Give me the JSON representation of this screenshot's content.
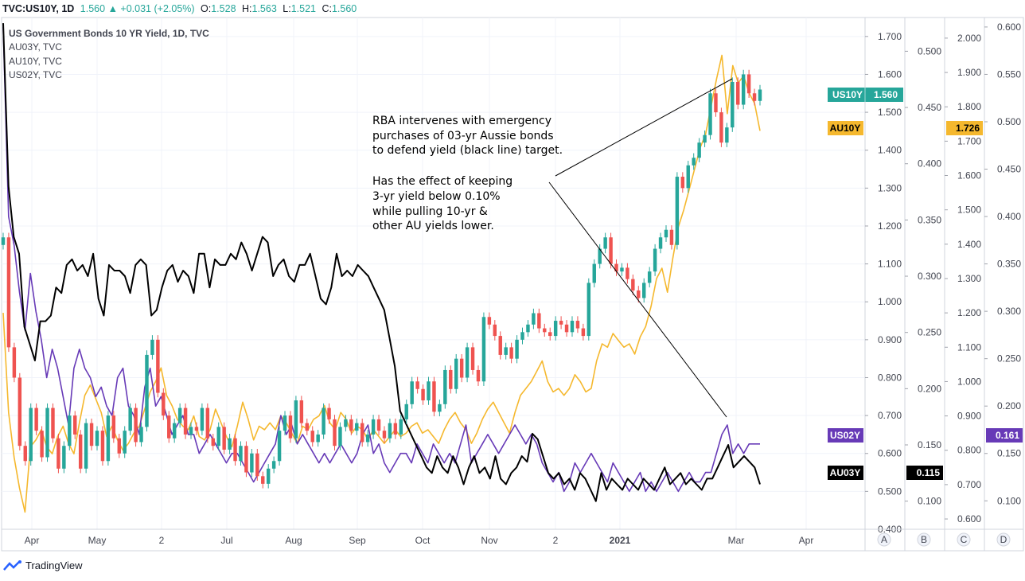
{
  "header": {
    "symbol": "TVC:US10Y, 1D",
    "price": "1.560",
    "arrow": "▲",
    "change": "+0.031 (+2.05%)",
    "o_label": "O:",
    "o_val": "1.528",
    "h_label": "H:",
    "h_val": "1.563",
    "l_label": "L:",
    "l_val": "1.521",
    "c_label": "C:",
    "c_val": "1.560"
  },
  "legend": {
    "main": "US Government Bonds 10 YR Yield, 1D, TVC",
    "items": [
      "AU03Y, TVC",
      "AU10Y, TVC",
      "US02Y, TVC"
    ]
  },
  "annotation": {
    "p1": [
      "RBA intervenes with emergency",
      "purchases of 03-yr Aussie bonds",
      "to defend yield (black line) target."
    ],
    "p2": [
      "Has the effect of keeping",
      "3-yr yield below 0.10%",
      "while pulling 10-yr &",
      "other AU yields lower."
    ]
  },
  "footer": {
    "brand": "TradingView"
  },
  "colors": {
    "us10y_up": "#26a69a",
    "us10y_down": "#ef5350",
    "au10y": "#f5b82e",
    "us02y": "#673ab7",
    "au03y": "#000000",
    "grid": "#f0f3fa"
  },
  "chart_data": {
    "type": "line",
    "x_ticks": [
      "Apr",
      "May",
      "2",
      "Jul",
      "Aug",
      "Sep",
      "Oct",
      "Nov",
      "2",
      "2021",
      "Mar",
      "Apr"
    ],
    "scale_letters": [
      "A",
      "B",
      "C",
      "D"
    ],
    "axis_A": {
      "ticks": [
        "1.700",
        "1.600",
        "1.500",
        "1.400",
        "1.300",
        "1.200",
        "1.100",
        "1.000",
        "0.900",
        "0.800",
        "0.700",
        "0.600",
        "0.500",
        "0.400"
      ],
      "range": [
        0.4,
        1.75
      ]
    },
    "axis_B": {
      "ticks": [
        "0.500",
        "0.450",
        "0.400",
        "0.350",
        "0.300",
        "0.250",
        "0.200",
        "0.150",
        "0.100"
      ],
      "range": [
        0.075,
        0.53
      ]
    },
    "axis_C": {
      "ticks": [
        "2.000",
        "1.900",
        "1.800",
        "1.700",
        "1.600",
        "1.500",
        "1.400",
        "1.300",
        "1.200",
        "1.100",
        "1.000",
        "0.900",
        "0.800",
        "0.700",
        "0.600"
      ],
      "range": [
        0.57,
        2.06
      ]
    },
    "axis_D": {
      "ticks": [
        "0.600",
        "0.550",
        "0.500",
        "0.450",
        "0.400",
        "0.350",
        "0.300",
        "0.250",
        "0.200",
        "0.150",
        "0.100"
      ],
      "range": [
        0.07,
        0.61
      ]
    },
    "series": [
      {
        "name": "US10Y",
        "axis": "A",
        "kind": "candles",
        "last_label": "1.560",
        "close": [
          1.17,
          0.88,
          0.8,
          0.62,
          0.58,
          0.72,
          0.66,
          0.59,
          0.72,
          0.64,
          0.56,
          0.62,
          0.7,
          0.65,
          0.56,
          0.68,
          0.62,
          0.66,
          0.58,
          0.7,
          0.64,
          0.6,
          0.66,
          0.72,
          0.63,
          0.67,
          0.86,
          0.9,
          0.76,
          0.7,
          0.64,
          0.68,
          0.72,
          0.65,
          0.67,
          0.66,
          0.72,
          0.64,
          0.62,
          0.67,
          0.61,
          0.64,
          0.58,
          0.62,
          0.55,
          0.6,
          0.54,
          0.52,
          0.56,
          0.58,
          0.66,
          0.7,
          0.64,
          0.74,
          0.68,
          0.66,
          0.63,
          0.65,
          0.72,
          0.69,
          0.62,
          0.67,
          0.69,
          0.66,
          0.68,
          0.63,
          0.65,
          0.69,
          0.66,
          0.64,
          0.68,
          0.65,
          0.69,
          0.73,
          0.79,
          0.77,
          0.74,
          0.79,
          0.71,
          0.73,
          0.82,
          0.77,
          0.85,
          0.8,
          0.88,
          0.82,
          0.79,
          0.96,
          0.94,
          0.91,
          0.86,
          0.88,
          0.85,
          0.9,
          0.92,
          0.94,
          0.97,
          0.93,
          0.92,
          0.91,
          0.95,
          0.94,
          0.92,
          0.95,
          0.93,
          0.91,
          1.05,
          1.1,
          1.14,
          1.17,
          1.1,
          1.08,
          1.09,
          1.06,
          1.03,
          1.01,
          1.05,
          1.08,
          1.14,
          1.17,
          1.19,
          1.15,
          1.33,
          1.3,
          1.36,
          1.38,
          1.42,
          1.44,
          1.55,
          1.5,
          1.42,
          1.46,
          1.58,
          1.52,
          1.6,
          1.55,
          1.53,
          1.56
        ]
      },
      {
        "name": "AU10Y",
        "axis": "C",
        "kind": "line",
        "last_label": "1.726",
        "values": [
          1.2,
          0.91,
          0.78,
          0.69,
          0.62,
          0.81,
          0.83,
          0.86,
          0.81,
          0.79,
          0.84,
          0.87,
          0.82,
          0.79,
          0.88,
          0.96,
          0.99,
          0.95,
          0.91,
          0.84,
          0.87,
          0.83,
          0.8,
          0.82,
          0.85,
          0.87,
          0.92,
          0.97,
          1.0,
          1.04,
          0.96,
          0.93,
          0.89,
          0.87,
          0.86,
          0.9,
          0.84,
          0.83,
          0.86,
          0.92,
          0.88,
          0.84,
          0.81,
          0.87,
          0.94,
          0.89,
          0.83,
          0.87,
          0.86,
          0.88,
          0.86,
          0.9,
          0.88,
          0.85,
          0.82,
          0.87,
          0.86,
          0.89,
          0.9,
          0.93,
          0.88,
          0.86,
          0.91,
          0.89,
          0.85,
          0.87,
          0.86,
          0.83,
          0.86,
          0.84,
          0.82,
          0.84,
          0.86,
          0.84,
          0.85,
          0.87,
          0.88,
          0.85,
          0.86,
          0.84,
          0.82,
          0.86,
          0.89,
          0.91,
          0.88,
          0.86,
          0.82,
          0.85,
          0.89,
          0.92,
          0.94,
          0.91,
          0.88,
          0.85,
          0.91,
          0.96,
          0.98,
          1.0,
          1.03,
          1.06,
          1.0,
          0.97,
          0.98,
          0.96,
          0.98,
          1.02,
          1.0,
          0.97,
          0.98,
          1.06,
          1.11,
          1.1,
          1.14,
          1.12,
          1.1,
          1.11,
          1.08,
          1.13,
          1.16,
          1.22,
          1.3,
          1.33,
          1.26,
          1.36,
          1.45,
          1.5,
          1.56,
          1.62,
          1.68,
          1.72,
          1.8,
          1.88,
          1.95,
          1.78,
          1.92,
          1.87,
          1.89,
          1.84,
          1.81,
          1.73
        ]
      },
      {
        "name": "US02Y",
        "axis": "D",
        "kind": "line",
        "last_label": "0.161",
        "values": [
          0.6,
          0.4,
          0.37,
          0.32,
          0.28,
          0.34,
          0.3,
          0.27,
          0.23,
          0.26,
          0.24,
          0.21,
          0.18,
          0.24,
          0.26,
          0.24,
          0.23,
          0.21,
          0.22,
          0.2,
          0.19,
          0.23,
          0.24,
          0.2,
          0.19,
          0.17,
          0.22,
          0.24,
          0.2,
          0.21,
          0.19,
          0.17,
          0.18,
          0.19,
          0.17,
          0.17,
          0.15,
          0.16,
          0.17,
          0.16,
          0.15,
          0.14,
          0.15,
          0.15,
          0.14,
          0.13,
          0.12,
          0.13,
          0.14,
          0.15,
          0.16,
          0.19,
          0.17,
          0.18,
          0.16,
          0.17,
          0.16,
          0.15,
          0.14,
          0.15,
          0.14,
          0.15,
          0.16,
          0.15,
          0.14,
          0.15,
          0.17,
          0.18,
          0.15,
          0.16,
          0.14,
          0.13,
          0.14,
          0.15,
          0.15,
          0.14,
          0.16,
          0.15,
          0.14,
          0.16,
          0.15,
          0.14,
          0.15,
          0.14,
          0.16,
          0.18,
          0.14,
          0.15,
          0.16,
          0.17,
          0.16,
          0.15,
          0.16,
          0.17,
          0.18,
          0.17,
          0.16,
          0.17,
          0.16,
          0.14,
          0.13,
          0.12,
          0.13,
          0.11,
          0.12,
          0.14,
          0.13,
          0.14,
          0.15,
          0.14,
          0.13,
          0.12,
          0.14,
          0.13,
          0.12,
          0.11,
          0.12,
          0.13,
          0.11,
          0.12,
          0.11,
          0.12,
          0.13,
          0.12,
          0.11,
          0.12,
          0.13,
          0.12,
          0.12,
          0.13,
          0.13,
          0.15,
          0.17,
          0.18,
          0.15,
          0.16,
          0.15,
          0.16,
          0.16,
          0.16
        ]
      },
      {
        "name": "AU03Y",
        "axis": "B",
        "kind": "line",
        "last_label": "0.115",
        "values": [
          0.525,
          0.38,
          0.335,
          0.32,
          0.255,
          0.24,
          0.225,
          0.26,
          0.26,
          0.265,
          0.29,
          0.285,
          0.31,
          0.315,
          0.305,
          0.31,
          0.3,
          0.32,
          0.28,
          0.265,
          0.31,
          0.305,
          0.305,
          0.3,
          0.285,
          0.31,
          0.315,
          0.31,
          0.265,
          0.27,
          0.29,
          0.305,
          0.31,
          0.295,
          0.305,
          0.3,
          0.285,
          0.32,
          0.32,
          0.29,
          0.315,
          0.31,
          0.31,
          0.32,
          0.315,
          0.33,
          0.32,
          0.305,
          0.32,
          0.335,
          0.33,
          0.3,
          0.31,
          0.315,
          0.3,
          0.295,
          0.31,
          0.31,
          0.32,
          0.3,
          0.28,
          0.275,
          0.29,
          0.32,
          0.3,
          0.305,
          0.3,
          0.31,
          0.305,
          0.3,
          0.29,
          0.28,
          0.27,
          0.245,
          0.22,
          0.18,
          0.17,
          0.16,
          0.15,
          0.14,
          0.13,
          0.125,
          0.14,
          0.13,
          0.125,
          0.14,
          0.13,
          0.115,
          0.13,
          0.14,
          0.125,
          0.13,
          0.12,
          0.14,
          0.12,
          0.115,
          0.125,
          0.13,
          0.14,
          0.135,
          0.16,
          0.155,
          0.14,
          0.125,
          0.12,
          0.125,
          0.115,
          0.12,
          0.11,
          0.125,
          0.12,
          0.11,
          0.1,
          0.125,
          0.11,
          0.12,
          0.115,
          0.11,
          0.12,
          0.115,
          0.11,
          0.12,
          0.115,
          0.11,
          0.12,
          0.13,
          0.115,
          0.12,
          0.125,
          0.115,
          0.12,
          0.115,
          0.11,
          0.12,
          0.12,
          0.13,
          0.14,
          0.15,
          0.13,
          0.135,
          0.14,
          0.135,
          0.13,
          0.115
        ]
      }
    ]
  }
}
